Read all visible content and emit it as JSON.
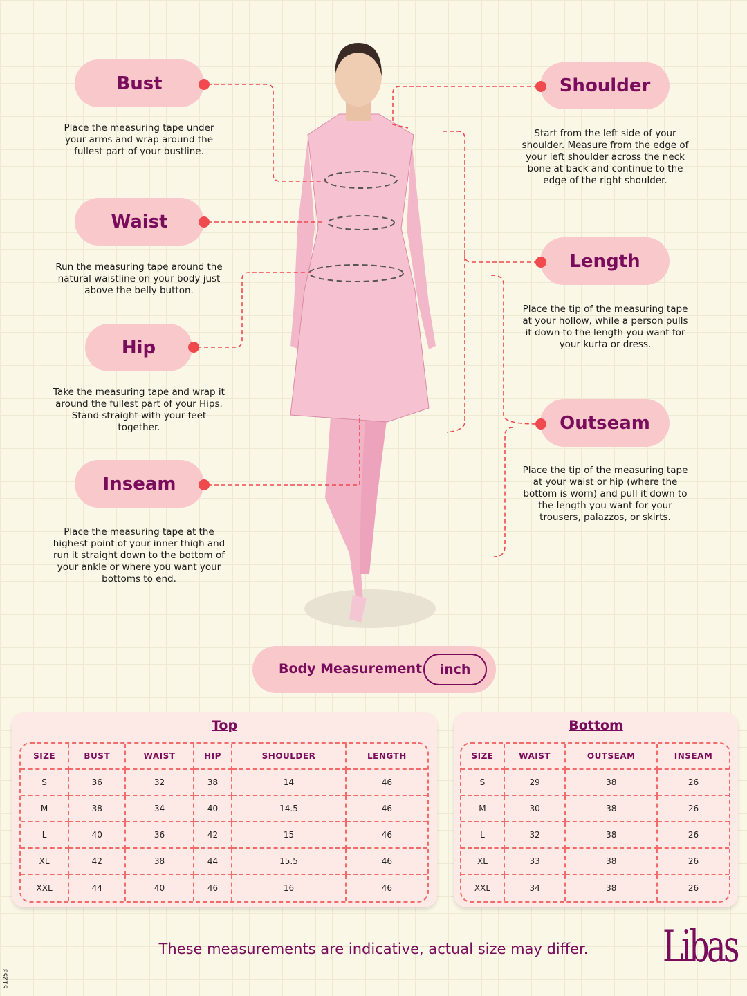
{
  "measures": {
    "bust": {
      "label": "Bust",
      "desc": "Place the measuring tape under your arms and wrap around the fullest part of your bustline."
    },
    "waist": {
      "label": "Waist",
      "desc": "Run the measuring tape around the natural waistline on your body just above the belly button."
    },
    "hip": {
      "label": "Hip",
      "desc": "Take the measuring tape and wrap it around the fullest part of your Hips. Stand straight with your feet together."
    },
    "inseam": {
      "label": "Inseam",
      "desc": "Place the measuring tape at the highest point of your inner thigh and run it straight down to the bottom of your ankle or where you want your bottoms to end."
    },
    "shoulder": {
      "label": "Shoulder",
      "desc": "Start from the left side of your shoulder. Measure from the edge of your left shoulder across the neck bone at back and continue to the edge of the right shoulder."
    },
    "length": {
      "label": "Length",
      "desc": "Place the tip of the measuring tape at your hollow, while a person pulls it down to the length you want for your kurta or dress."
    },
    "outseam": {
      "label": "Outseam",
      "desc": "Place the tip of the measuring tape at your waist or hip (where the bottom is worn) and pull it down to the length you want for your trousers, palazzos, or skirts."
    }
  },
  "unit": {
    "label": "Body Measurement",
    "value": "inch"
  },
  "top_table": {
    "title": "Top",
    "headers": [
      "SIZE",
      "BUST",
      "WAIST",
      "HIP",
      "SHOULDER",
      "LENGTH"
    ],
    "rows": [
      [
        "S",
        "36",
        "32",
        "38",
        "14",
        "46"
      ],
      [
        "M",
        "38",
        "34",
        "40",
        "14.5",
        "46"
      ],
      [
        "L",
        "40",
        "36",
        "42",
        "15",
        "46"
      ],
      [
        "XL",
        "42",
        "38",
        "44",
        "15.5",
        "46"
      ],
      [
        "XXL",
        "44",
        "40",
        "46",
        "16",
        "46"
      ]
    ]
  },
  "bottom_table": {
    "title": "Bottom",
    "headers": [
      "SIZE",
      "WAIST",
      "OUTSEAM",
      "INSEAM"
    ],
    "rows": [
      [
        "S",
        "29",
        "38",
        "26"
      ],
      [
        "M",
        "30",
        "38",
        "26"
      ],
      [
        "L",
        "32",
        "38",
        "26"
      ],
      [
        "XL",
        "33",
        "38",
        "26"
      ],
      [
        "XXL",
        "34",
        "38",
        "26"
      ]
    ]
  },
  "footer": "These measurements are indicative, actual size may differ.",
  "brand": "Libas",
  "code": "51253",
  "colors": {
    "pill": "#f9c8cb",
    "text": "#7a0c5c",
    "dot": "#f0494e",
    "background": "#fbf7e6"
  }
}
